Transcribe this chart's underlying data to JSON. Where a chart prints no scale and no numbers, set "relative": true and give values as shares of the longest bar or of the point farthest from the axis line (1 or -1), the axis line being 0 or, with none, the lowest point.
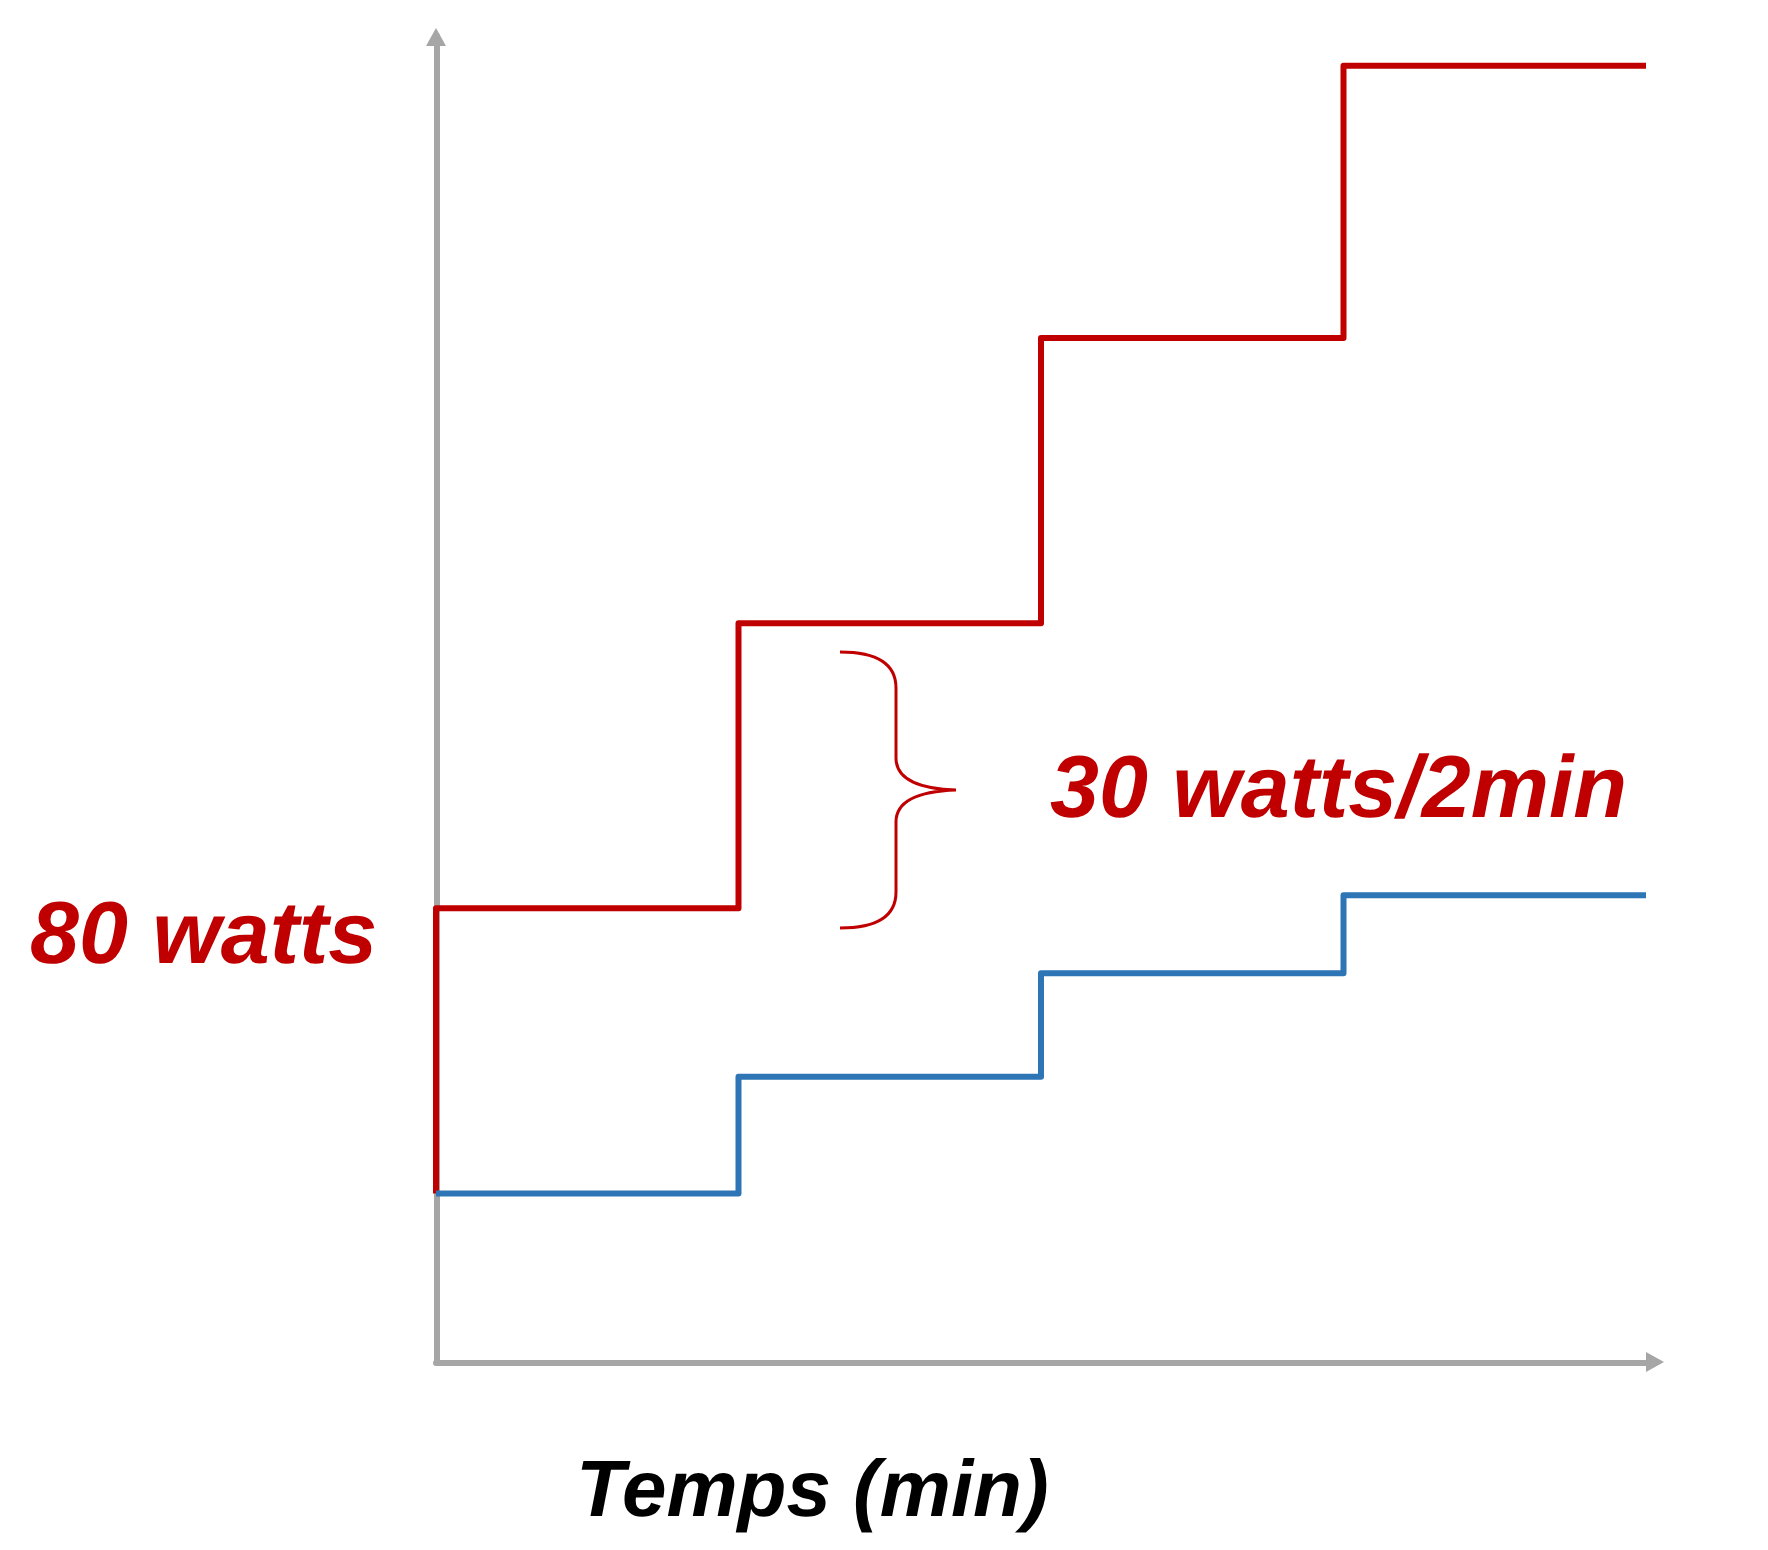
{
  "chart_data": {
    "type": "step",
    "relative": true,
    "xlabel": "Temps (min)",
    "categories": [
      null,
      null,
      null,
      null,
      null
    ],
    "series": [
      {
        "color": "#c00000",
        "values": [
          0.13,
          0.35,
          0.57,
          0.79,
          1.0
        ]
      },
      {
        "color": "#2e75b6",
        "values": [
          0.13,
          0.13,
          0.22,
          0.3,
          0.36
        ]
      }
    ],
    "annotations": [
      "80 watts",
      "30 watts/2min"
    ],
    "grid": false,
    "marker": "none"
  }
}
